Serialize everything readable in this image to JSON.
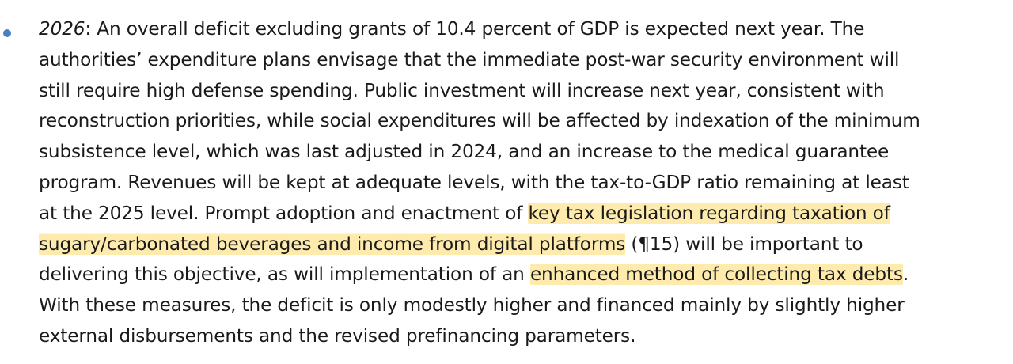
{
  "bullet": {
    "lines": [
      [
        "2026",
        ": An overall deficit excluding grants of 10.4 percent of GDP is expected next year. The"
      ],
      "authorities’ expenditure plans envisage that the immediate post-war security environment will",
      "still require high defense spending. Public investment will increase next year, consistent with",
      "reconstruction priorities, while social expenditures will be affected by indexation of the minimum",
      "subsistence level, which was last adjusted in 2024, and an increase to the medical guarantee",
      "program. Revenues will be kept at adequate levels, with the tax-to-GDP ratio remaining at least",
      [
        "at the 2025 level. Prompt adoption and enactment of ",
        "key tax legislation regarding taxation of"
      ],
      [
        "sugary/carbonated beverages and income from digital platforms",
        " (¶15) will be important to"
      ],
      [
        "delivering this objective, as will implementation of an ",
        "enhanced method of collecting tax debts",
        "."
      ],
      "With these measures, the deficit is only modestly higher and financed mainly by slightly higher",
      "external disbursements and the revised prefinancing parameters."
    ]
  },
  "colors": {
    "bullet": "#4a7fc0",
    "highlight": "#fcda69",
    "text": "#1a1a1a"
  }
}
